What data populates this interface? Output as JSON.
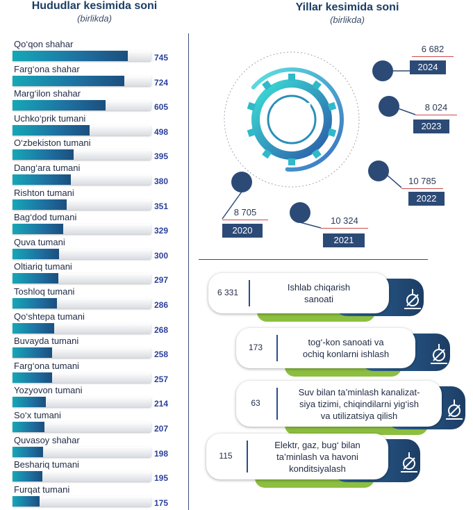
{
  "left_header": {
    "title": "Hududlar kesimida soni",
    "subtitle": "(birlikda)"
  },
  "right_header": {
    "title": "Yillar kesimida soni",
    "subtitle": "(birlikda)"
  },
  "colors": {
    "bar_start": "#16a7b7",
    "bar_end": "#1b4f7e",
    "value_text": "#2a3f9a",
    "year_box": "#2c4a76",
    "accent_green": "#8cbf3f"
  },
  "chart_data": [
    {
      "type": "bar",
      "title": "Hududlar kesimida soni",
      "subtitle": "(birlikda)",
      "orientation": "horizontal",
      "xlim": [
        0,
        900
      ],
      "categories": [
        "Qo‘qon shahar",
        "Farg‘ona shahar",
        "Marg‘ilon shahar",
        "Uchko‘prik tumani",
        "O‘zbekiston tumani",
        "Dang‘ara tumani",
        "Rishton tumani",
        "Bag‘dod tumani",
        "Quva tumani",
        "Oltiariq tumani",
        "Toshloq tumani",
        "Qo‘shtepa tumani",
        "Buvayda tumani",
        "Farg‘ona tumani",
        "Yozyovon tumani",
        "So‘x tumani",
        "Quvasoy shahar",
        "Beshariq tumani",
        "Furqat tumani"
      ],
      "values": [
        745,
        724,
        605,
        498,
        395,
        380,
        351,
        329,
        300,
        297,
        286,
        268,
        258,
        257,
        214,
        207,
        198,
        195,
        175
      ]
    },
    {
      "type": "bar",
      "title": "Yillar kesimida soni",
      "subtitle": "(birlikda)",
      "categories": [
        "2020",
        "2021",
        "2022",
        "2023",
        "2024"
      ],
      "values": [
        8705,
        10324,
        10785,
        8024,
        6682
      ],
      "value_labels": [
        "8 705",
        "10 324",
        "10 785",
        "8 024",
        "6 682"
      ]
    },
    {
      "type": "table",
      "rows": [
        {
          "value": 6331,
          "value_label": "6 331",
          "label": "Ishlab chiqarish sanoati",
          "lines": [
            "Ishlab chiqarish",
            "sanoati"
          ],
          "icon": "robot-arm-icon"
        },
        {
          "value": 173,
          "value_label": "173",
          "label": "tog‘-kon sanoati va ochiq konlarni ishlash",
          "lines": [
            "tog‘-kon sanoati va",
            "ochiq konlarni ishlash"
          ],
          "icon": "mining-icon"
        },
        {
          "value": 63,
          "value_label": "63",
          "label": "Suv bilan ta’minlash kanalizatsiya tizimi, chiqindilarni yig‘ish va utilizatsiya qilish",
          "lines": [
            "Suv bilan ta’minlash kanalizat-",
            "siya tizimi, chiqindilarni yig‘ish",
            "va utilizatsiya qilish"
          ],
          "icon": "water-valve-icon"
        },
        {
          "value": 115,
          "value_label": "115",
          "label": "Elektr, gaz, bug‘ bilan ta’minlash va havoni konditsiyalash",
          "lines": [
            "Elektr, gaz, bug‘ bilan",
            "ta’minlash va havoni",
            "konditsiyalash"
          ],
          "icon": "power-tower-icon"
        }
      ]
    }
  ]
}
